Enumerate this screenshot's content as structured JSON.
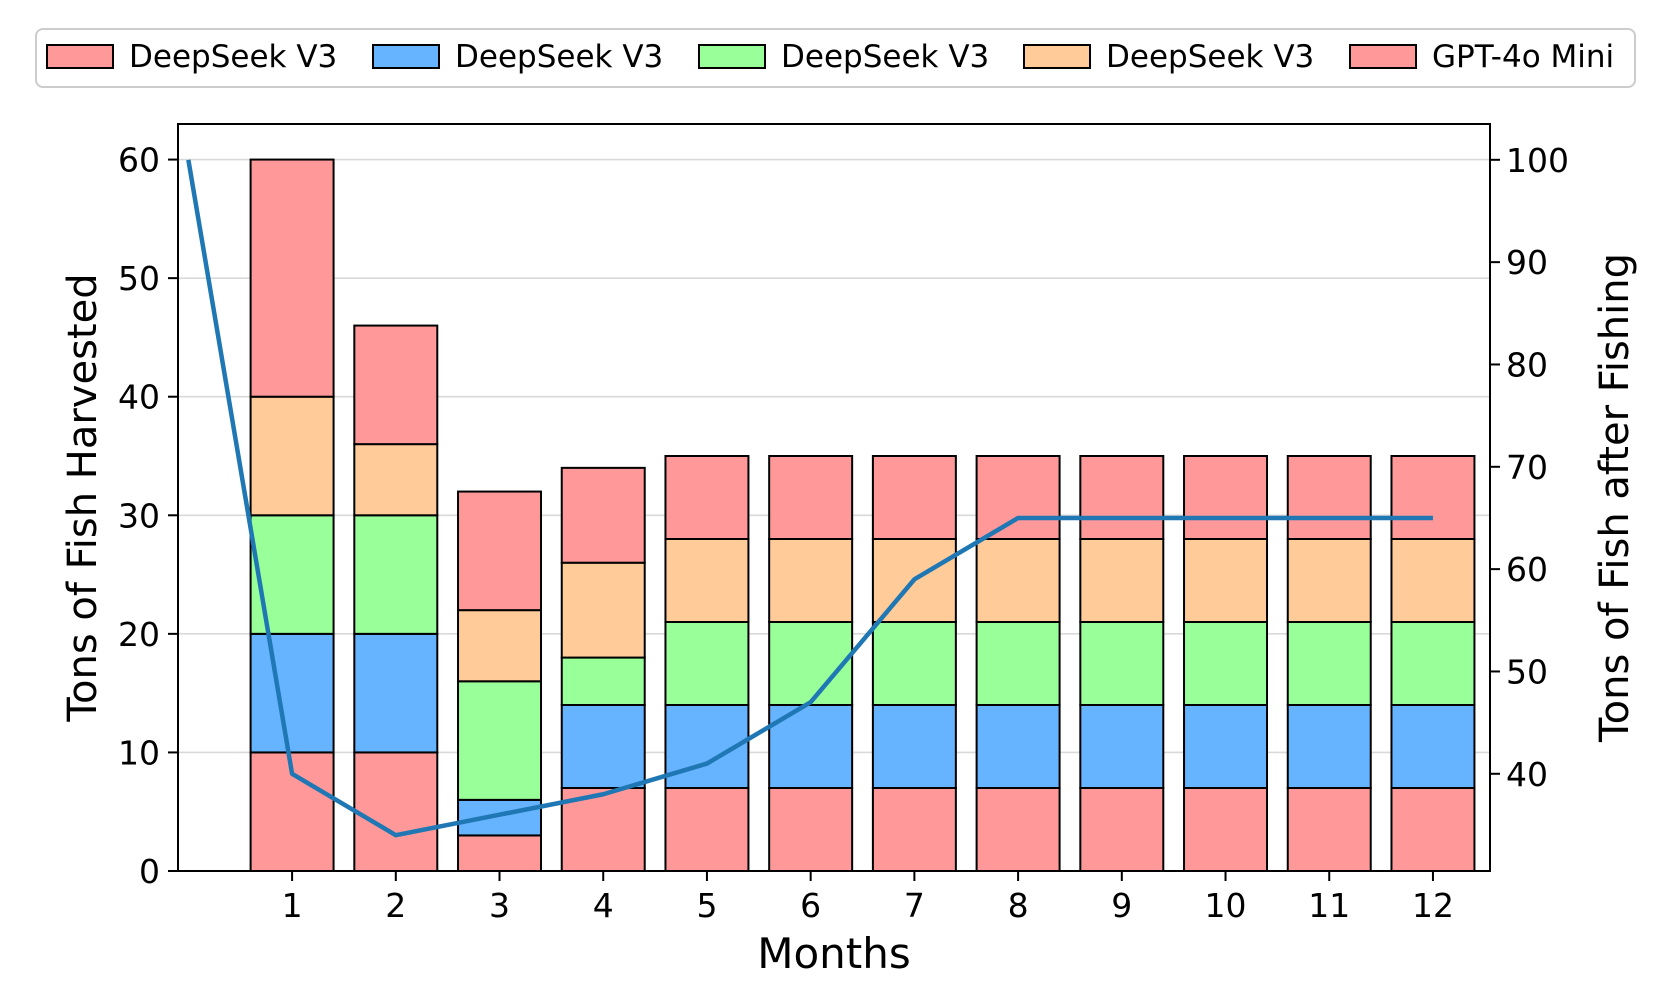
{
  "chart_data": {
    "type": "bar",
    "stacked": true,
    "xlabel": "Months",
    "ylabel": "Tons of Fish Harvested",
    "y2label": "Tons of Fish after Fishing",
    "categories": [
      "1",
      "2",
      "3",
      "4",
      "5",
      "6",
      "7",
      "8",
      "9",
      "10",
      "11",
      "12"
    ],
    "ylim": [
      0,
      63
    ],
    "yticks": [
      0,
      10,
      20,
      30,
      40,
      50,
      60
    ],
    "y2lim": [
      30.5,
      103.5
    ],
    "y2ticks": [
      40,
      50,
      60,
      70,
      80,
      90,
      100
    ],
    "xlim": [
      -0.1,
      12.55
    ],
    "grid": "horizontal",
    "legend_position": "top",
    "series": [
      {
        "name": "DeepSeek V3",
        "color": "#ff9999",
        "values": [
          10,
          10,
          3,
          7,
          7,
          7,
          7,
          7,
          7,
          7,
          7,
          7
        ]
      },
      {
        "name": "DeepSeek V3",
        "color": "#66b3ff",
        "values": [
          10,
          10,
          3,
          7,
          7,
          7,
          7,
          7,
          7,
          7,
          7,
          7
        ]
      },
      {
        "name": "DeepSeek V3",
        "color": "#99ff99",
        "values": [
          10,
          10,
          10,
          4,
          7,
          7,
          7,
          7,
          7,
          7,
          7,
          7
        ]
      },
      {
        "name": "DeepSeek V3",
        "color": "#ffcc99",
        "values": [
          10,
          6,
          6,
          8,
          7,
          7,
          7,
          7,
          7,
          7,
          7,
          7
        ]
      },
      {
        "name": "GPT-4o Mini",
        "color": "#ff9999",
        "values": [
          20,
          10,
          10,
          8,
          7,
          7,
          7,
          7,
          7,
          7,
          7,
          7
        ]
      }
    ],
    "line": {
      "axis": "right",
      "color": "#1f77b4",
      "x": [
        0,
        1,
        2,
        3,
        4,
        5,
        6,
        7,
        8,
        9,
        10,
        11,
        12
      ],
      "values": [
        100,
        40,
        34,
        36,
        38,
        41,
        47,
        59,
        65,
        65,
        65,
        65,
        65
      ]
    }
  }
}
